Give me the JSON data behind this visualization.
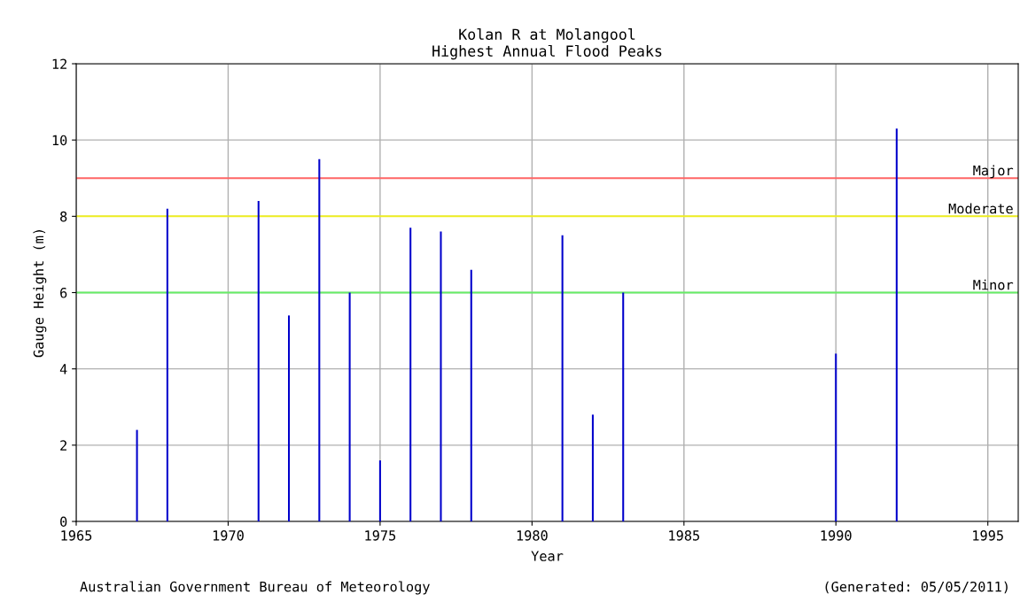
{
  "chart_data": {
    "type": "bar",
    "title": "Kolan R at Molangool\nHighest Annual Flood Peaks",
    "xlabel": "Year",
    "ylabel": "Gauge Height (m)",
    "x": [
      1967,
      1968,
      1971,
      1972,
      1973,
      1974,
      1975,
      1976,
      1977,
      1978,
      1981,
      1982,
      1983,
      1990,
      1992
    ],
    "values": [
      2.4,
      8.2,
      8.4,
      5.4,
      9.5,
      6.0,
      1.6,
      7.7,
      7.6,
      6.6,
      7.5,
      2.8,
      6.0,
      4.4,
      10.3
    ],
    "color": "#0000cc",
    "xlim": [
      1965,
      1996
    ],
    "xticks": [
      1965,
      1970,
      1975,
      1980,
      1985,
      1990,
      1995
    ],
    "ylim": [
      0,
      12
    ],
    "yticks": [
      0,
      2,
      4,
      6,
      8,
      10,
      12
    ],
    "grid": true,
    "ref_lines": [
      {
        "axis": "y",
        "value": 9,
        "label": "Major",
        "color": "#ff6666"
      },
      {
        "axis": "y",
        "value": 8,
        "label": "Moderate",
        "color": "#eeee22"
      },
      {
        "axis": "y",
        "value": 6,
        "label": "Minor",
        "color": "#66ee66"
      }
    ],
    "annotations": [
      "Australian Government Bureau of Meteorology",
      "(Generated: 05/05/2011)"
    ]
  }
}
